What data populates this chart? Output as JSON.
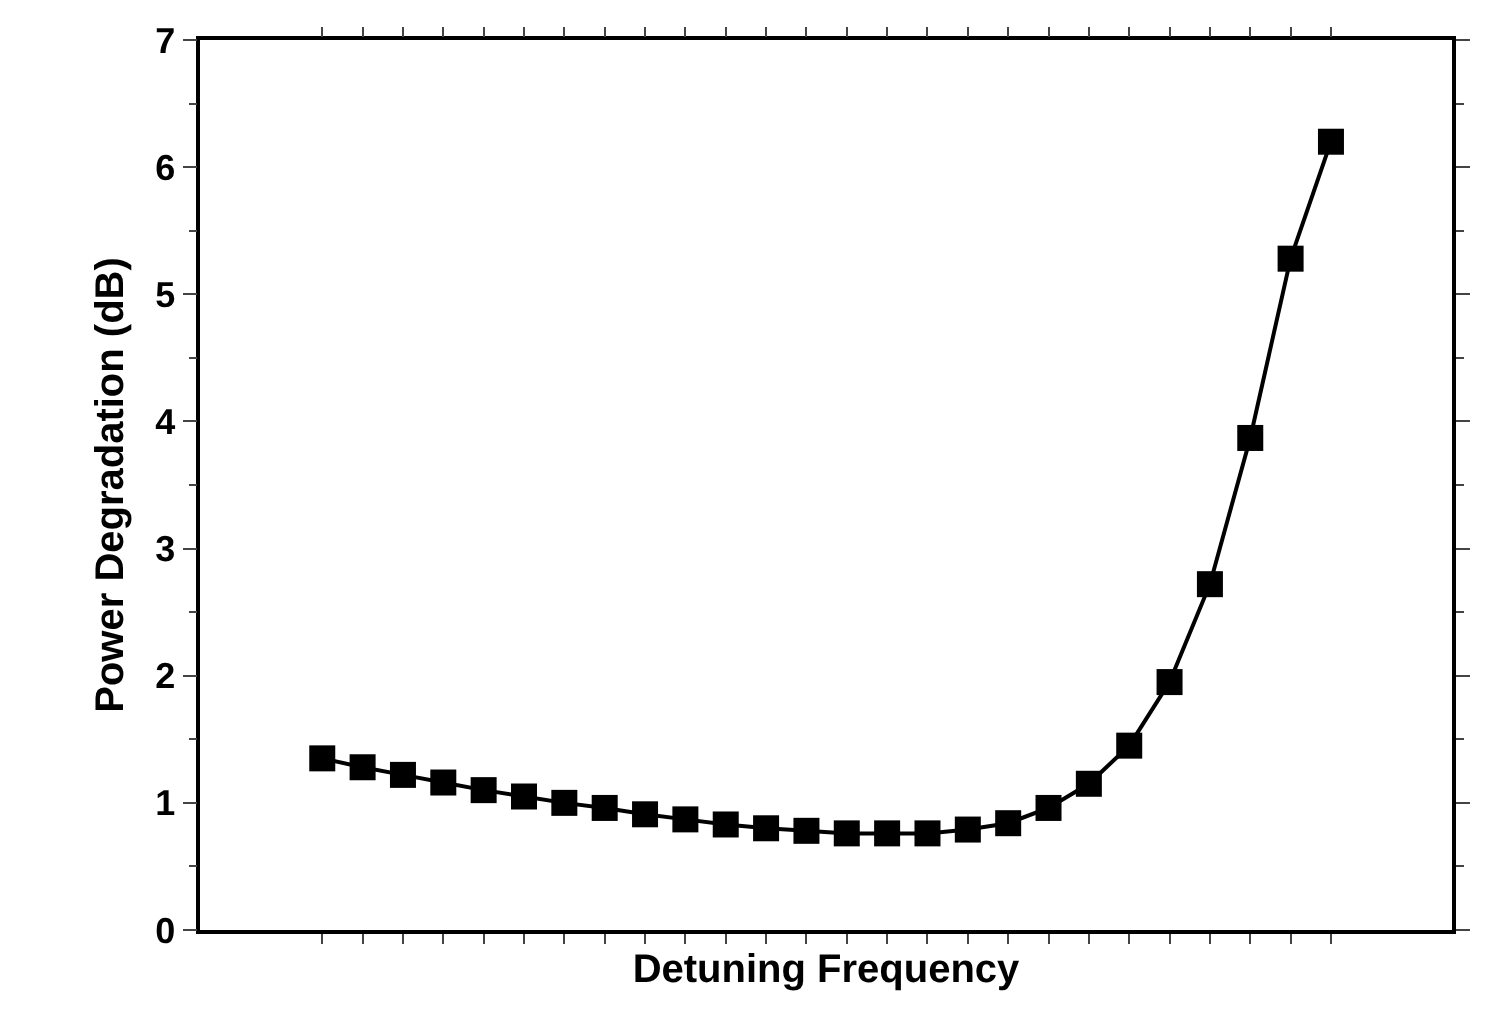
{
  "chart_data": {
    "type": "line",
    "xlabel": "Detuning Frequency",
    "ylabel": "Power Degradation (dB)",
    "categories": [
      null,
      null,
      null,
      null,
      null,
      null,
      null,
      null,
      null,
      null,
      null,
      null,
      null,
      null,
      null,
      null,
      null,
      null,
      null,
      null,
      null,
      null,
      null,
      null,
      null,
      null
    ],
    "series": [
      {
        "color": "#000000",
        "values": [
          1.35,
          1.28,
          1.22,
          1.16,
          1.1,
          1.05,
          1.0,
          0.96,
          0.91,
          0.87,
          0.83,
          0.8,
          0.78,
          0.76,
          0.76,
          0.76,
          0.79,
          0.84,
          0.96,
          1.15,
          1.45,
          1.95,
          2.72,
          3.87,
          5.28,
          6.2
        ]
      }
    ],
    "ylim": [
      0,
      7
    ],
    "yticks": [
      0,
      1,
      2,
      3,
      4,
      5,
      6,
      7
    ],
    "marker": "square",
    "line_style": "solid",
    "tick_labels": "y"
  }
}
